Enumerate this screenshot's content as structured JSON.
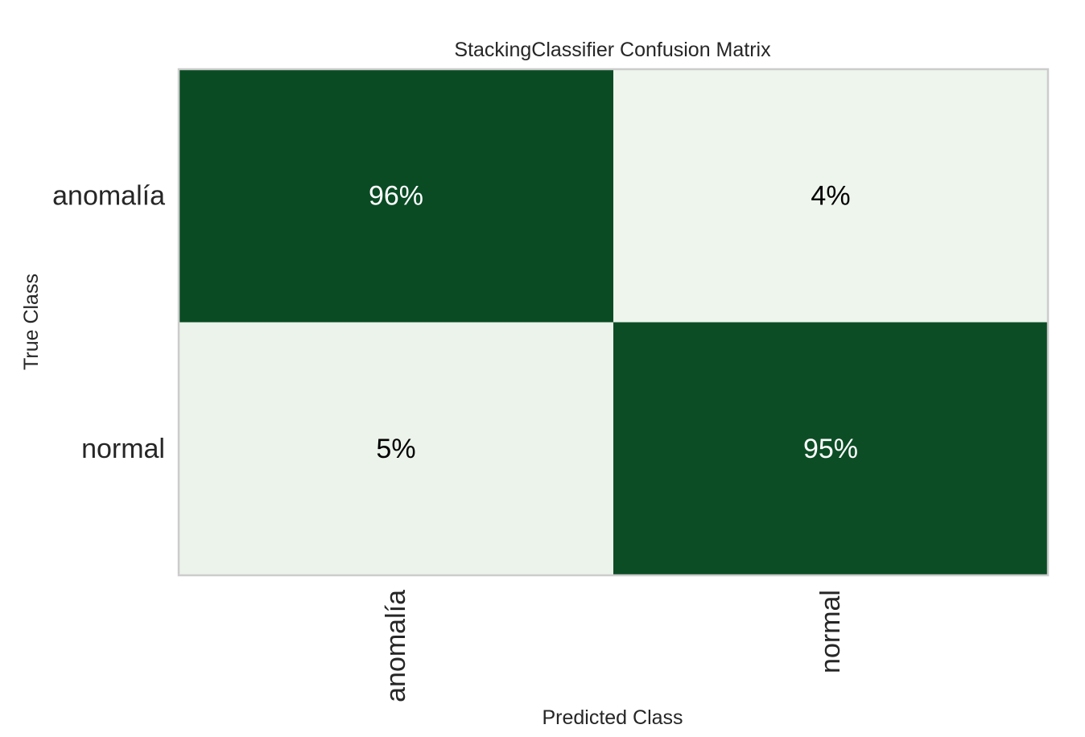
{
  "chart_data": {
    "type": "heatmap",
    "title": "StackingClassifier Confusion Matrix",
    "xlabel": "Predicted Class",
    "ylabel": "True Class",
    "x_categories": [
      "anomalía",
      "normal"
    ],
    "y_categories": [
      "anomalía",
      "normal"
    ],
    "values": [
      [
        96,
        4
      ],
      [
        5,
        95
      ]
    ],
    "cell_labels": [
      [
        "96%",
        "4%"
      ],
      [
        "5%",
        "95%"
      ]
    ],
    "value_range": [
      0,
      100
    ],
    "colors": {
      "high": "#00441b",
      "low": "#f7fcf5",
      "text_on_high": "#ffffff",
      "text_on_low": "#000000",
      "frame": "#cccccc",
      "axis_text": "#262626",
      "tick_text": "#262626"
    },
    "grid": false,
    "legend": "none"
  }
}
